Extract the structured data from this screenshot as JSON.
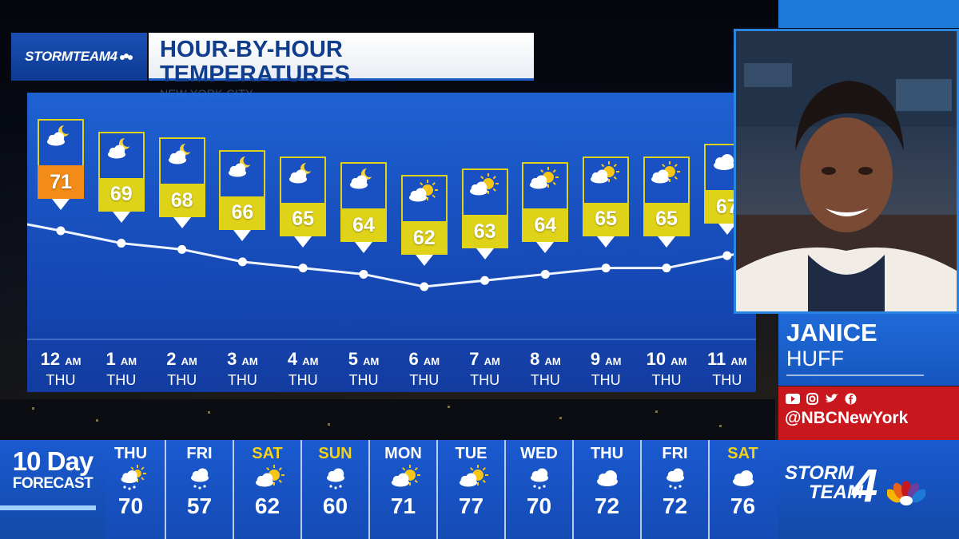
{
  "header": {
    "logo_text": "STORMTEAM4",
    "title": "HOUR-BY-HOUR TEMPERATURES",
    "subtitle": "NEW YORK CITY"
  },
  "hourly": [
    {
      "hour": "12",
      "ampm": "AM",
      "day": "THU",
      "temp": "71",
      "icon": "partly-cloudy-moon-icon",
      "highlight": true
    },
    {
      "hour": "1",
      "ampm": "AM",
      "day": "THU",
      "temp": "69",
      "icon": "partly-cloudy-moon-icon",
      "highlight": false
    },
    {
      "hour": "2",
      "ampm": "AM",
      "day": "THU",
      "temp": "68",
      "icon": "partly-cloudy-moon-icon",
      "highlight": false
    },
    {
      "hour": "3",
      "ampm": "AM",
      "day": "THU",
      "temp": "66",
      "icon": "partly-cloudy-moon-icon",
      "highlight": false
    },
    {
      "hour": "4",
      "ampm": "AM",
      "day": "THU",
      "temp": "65",
      "icon": "partly-cloudy-moon-icon",
      "highlight": false
    },
    {
      "hour": "5",
      "ampm": "AM",
      "day": "THU",
      "temp": "64",
      "icon": "partly-cloudy-moon-icon",
      "highlight": false
    },
    {
      "hour": "6",
      "ampm": "AM",
      "day": "THU",
      "temp": "62",
      "icon": "partly-cloudy-sun-icon",
      "highlight": false
    },
    {
      "hour": "7",
      "ampm": "AM",
      "day": "THU",
      "temp": "63",
      "icon": "partly-cloudy-sun-icon",
      "highlight": false
    },
    {
      "hour": "8",
      "ampm": "AM",
      "day": "THU",
      "temp": "64",
      "icon": "partly-cloudy-sun-icon",
      "highlight": false
    },
    {
      "hour": "9",
      "ampm": "AM",
      "day": "THU",
      "temp": "65",
      "icon": "partly-cloudy-sun-icon",
      "highlight": false
    },
    {
      "hour": "10",
      "ampm": "AM",
      "day": "THU",
      "temp": "65",
      "icon": "partly-cloudy-sun-icon",
      "highlight": false
    },
    {
      "hour": "11",
      "ampm": "AM",
      "day": "THU",
      "temp": "67",
      "icon": "cloudy-icon",
      "highlight": false
    }
  ],
  "presenter": {
    "first_name": "JANICE",
    "last_name": "HUFF",
    "social_icons": [
      "youtube-icon",
      "instagram-icon",
      "twitter-icon",
      "facebook-icon"
    ],
    "handle": "@NBCNewYork"
  },
  "ten_day": {
    "label_big": "10 Day",
    "label_small": "FORECAST",
    "days": [
      {
        "name": "THU",
        "temp": "70",
        "icon": "rain-sun-icon",
        "weekend": false
      },
      {
        "name": "FRI",
        "temp": "57",
        "icon": "rain-icon",
        "weekend": false
      },
      {
        "name": "SAT",
        "temp": "62",
        "icon": "partly-cloudy-sun-icon",
        "weekend": true
      },
      {
        "name": "SUN",
        "temp": "60",
        "icon": "rain-icon",
        "weekend": true
      },
      {
        "name": "MON",
        "temp": "71",
        "icon": "partly-cloudy-sun-icon",
        "weekend": false
      },
      {
        "name": "TUE",
        "temp": "77",
        "icon": "partly-cloudy-sun-icon",
        "weekend": false
      },
      {
        "name": "WED",
        "temp": "70",
        "icon": "rain-icon",
        "weekend": false
      },
      {
        "name": "THU",
        "temp": "72",
        "icon": "cloudy-icon",
        "weekend": false
      },
      {
        "name": "FRI",
        "temp": "72",
        "icon": "rain-icon",
        "weekend": false
      },
      {
        "name": "SAT",
        "temp": "76",
        "icon": "cloudy-icon",
        "weekend": true
      }
    ]
  },
  "brand": {
    "line1": "STORM",
    "line2": "TEAM",
    "number": "4"
  },
  "colors": {
    "panel_blue": "#1f66d8",
    "temp_yellow": "#dfd31a",
    "temp_orange": "#f28b17",
    "weekend_yellow": "#f3d21a",
    "social_red": "#c8171d"
  }
}
